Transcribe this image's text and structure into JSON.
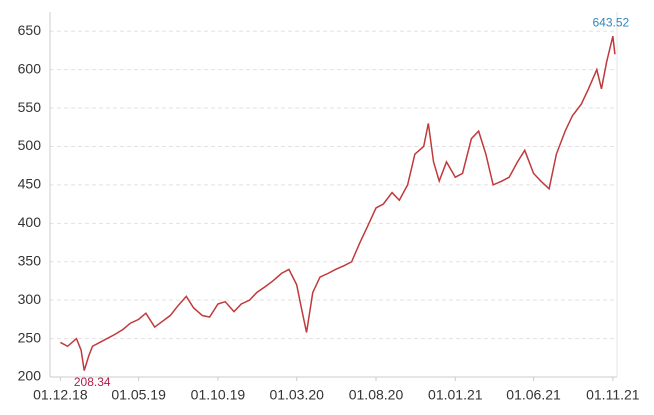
{
  "chart_data": {
    "type": "line",
    "x": [
      "01.12.18",
      "15.12.18",
      "01.01.19",
      "10.01.19",
      "16.01.19",
      "25.01.19",
      "01.02.19",
      "15.02.19",
      "01.03.19",
      "15.03.19",
      "01.04.19",
      "15.04.19",
      "01.05.19",
      "15.05.19",
      "01.06.19",
      "15.06.19",
      "01.07.19",
      "15.07.19",
      "01.08.19",
      "15.08.19",
      "01.09.19",
      "15.09.19",
      "01.10.19",
      "15.10.19",
      "01.11.19",
      "15.11.19",
      "01.12.19",
      "15.12.19",
      "01.01.20",
      "15.01.20",
      "01.02.20",
      "15.02.20",
      "01.03.20",
      "10.03.20",
      "20.03.20",
      "01.04.20",
      "15.04.20",
      "01.05.20",
      "15.05.20",
      "01.06.20",
      "15.06.20",
      "01.07.20",
      "15.07.20",
      "01.08.20",
      "15.08.20",
      "01.09.20",
      "15.09.20",
      "01.10.20",
      "15.10.20",
      "01.11.20",
      "10.11.20",
      "20.11.20",
      "01.12.20",
      "15.12.20",
      "01.01.21",
      "15.01.21",
      "01.02.21",
      "15.02.21",
      "01.03.21",
      "15.03.21",
      "01.04.21",
      "15.04.21",
      "01.05.21",
      "15.05.21",
      "01.06.21",
      "15.06.21",
      "01.07.21",
      "15.07.21",
      "01.08.21",
      "15.08.21",
      "01.09.21",
      "15.09.21",
      "01.10.21",
      "10.10.21",
      "20.10.21",
      "01.11.21",
      "05.11.21"
    ],
    "series": [
      {
        "color": "#c0393b",
        "values": [
          245,
          240,
          250,
          235,
          208.34,
          228,
          240,
          245,
          250,
          255,
          262,
          270,
          275,
          283,
          265,
          272,
          280,
          292,
          305,
          290,
          280,
          278,
          295,
          298,
          285,
          295,
          300,
          310,
          318,
          325,
          335,
          340,
          320,
          290,
          258,
          310,
          330,
          335,
          340,
          345,
          350,
          375,
          395,
          420,
          425,
          440,
          430,
          450,
          490,
          500,
          530,
          480,
          455,
          480,
          460,
          465,
          510,
          520,
          490,
          450,
          455,
          460,
          480,
          495,
          465,
          455,
          445,
          490,
          520,
          540,
          555,
          575,
          600,
          575,
          610,
          643.52,
          620
        ]
      }
    ],
    "annotations": [
      {
        "x": "01.11.21",
        "y": 643.52,
        "color": "#2e86c1"
      },
      {
        "x": "16.01.19",
        "y": 208.34,
        "color": "#b0204a"
      }
    ],
    "xlim": [
      "11.11.18",
      "09.11.21"
    ],
    "xticks": [
      "01.12.18",
      "01.05.19",
      "01.10.19",
      "01.03.20",
      "01.08.20",
      "01.01.21",
      "01.06.21",
      "01.11.21"
    ],
    "ylim": [
      200,
      675
    ],
    "yticks": [
      200,
      250,
      300,
      350,
      400,
      450,
      500,
      550,
      600,
      650
    ],
    "grid": true
  }
}
